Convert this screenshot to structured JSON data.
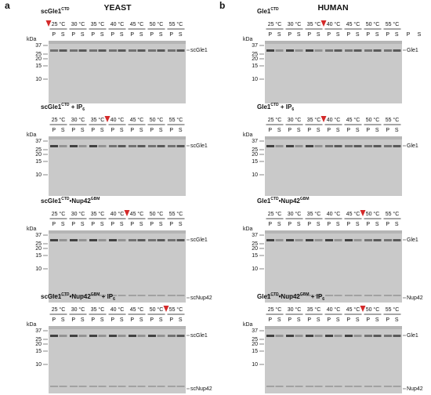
{
  "kda": "kDa",
  "markers": [
    "37",
    "25",
    "20",
    "15",
    "10"
  ],
  "temperatures": [
    "25 °C",
    "30 °C",
    "35 °C",
    "40 °C",
    "45 °C",
    "50 °C",
    "55 °C"
  ],
  "lanes": [
    "P",
    "S"
  ],
  "panels": [
    {
      "label": "a",
      "title": "YEAST",
      "gels": [
        {
          "title": [
            {
              "text": "scGle1"
            },
            {
              "text": "CTD",
              "style": "sup"
            }
          ],
          "bands": [
            "scGle1"
          ]
        },
        {
          "title": [
            {
              "text": "scGle1"
            },
            {
              "text": "CTD",
              "style": "sup"
            },
            {
              "text": " + IP"
            },
            {
              "text": "6",
              "style": "sub"
            }
          ],
          "bands": [
            "scGle1"
          ]
        },
        {
          "title": [
            {
              "text": "scGle1"
            },
            {
              "text": "CTD",
              "style": "sup"
            },
            {
              "text": "•Nup42"
            },
            {
              "text": "GBM",
              "style": "sup"
            }
          ],
          "bands": [
            "scGle1",
            "scNup42"
          ]
        },
        {
          "title": [
            {
              "text": "scGle1"
            },
            {
              "text": "CTD",
              "style": "sup"
            },
            {
              "text": "•Nup42"
            },
            {
              "text": "GBM",
              "style": "sup"
            },
            {
              "text": " + IP"
            },
            {
              "text": "6",
              "style": "sub"
            }
          ],
          "bands": [
            "scGle1",
            "scNup42"
          ]
        }
      ]
    },
    {
      "label": "b",
      "title": "HUMAN",
      "gels": [
        {
          "title": [
            {
              "text": "Gle1"
            },
            {
              "text": "CTD",
              "style": "sup"
            }
          ],
          "bands": [
            "Gle1"
          ],
          "extra_lanes": [
            "P",
            "S"
          ]
        },
        {
          "title": [
            {
              "text": "Gle1"
            },
            {
              "text": "CTD",
              "style": "sup"
            },
            {
              "text": " + IP"
            },
            {
              "text": "6",
              "style": "sub"
            }
          ],
          "bands": [
            "Gle1"
          ]
        },
        {
          "title": [
            {
              "text": "Gle1"
            },
            {
              "text": "CTD",
              "style": "sup"
            },
            {
              "text": "•Nup42"
            },
            {
              "text": "GBM",
              "style": "sup"
            }
          ],
          "bands": [
            "Gle1",
            "Nup42"
          ]
        },
        {
          "title": [
            {
              "text": "Gle1"
            },
            {
              "text": "CTD",
              "style": "sup"
            },
            {
              "text": "•Nup42"
            },
            {
              "text": "GBM",
              "style": "sup"
            },
            {
              "text": " + IP"
            },
            {
              "text": "6",
              "style": "sub"
            }
          ],
          "bands": [
            "Gle1",
            "Nup42"
          ]
        }
      ]
    }
  ]
}
